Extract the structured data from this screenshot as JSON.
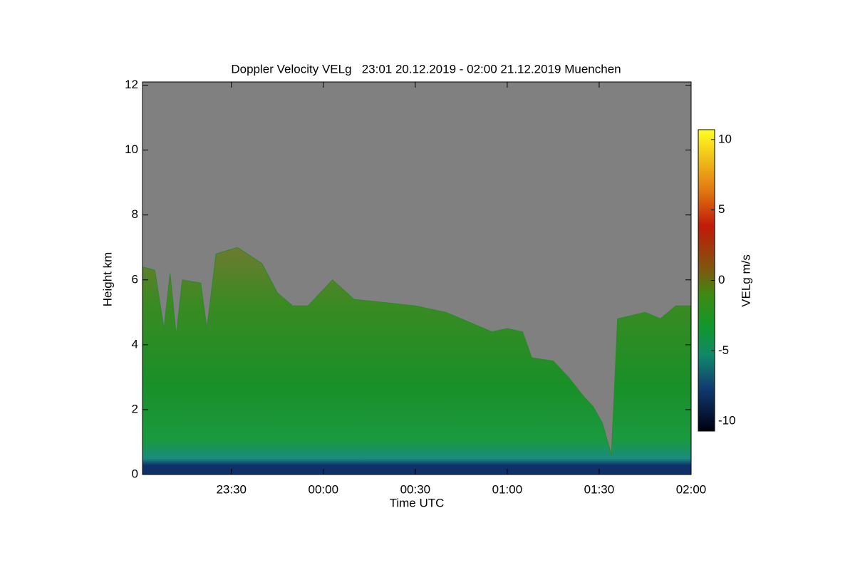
{
  "chart_data": {
    "type": "area",
    "title": "Doppler Velocity VELg   23:01 20.12.2019 - 02:00 21.12.2019 Muenchen",
    "xlabel": "Time UTC",
    "ylabel": "Height km",
    "colorbar_label": "VELg m/s",
    "x": [
      "23:01",
      "23:05",
      "23:08",
      "23:10",
      "23:12",
      "23:14",
      "23:20",
      "23:22",
      "23:25",
      "23:32",
      "23:40",
      "23:45",
      "23:50",
      "23:55",
      "00:03",
      "00:10",
      "00:20",
      "00:30",
      "00:40",
      "00:50",
      "00:55",
      "01:00",
      "01:05",
      "01:08",
      "01:15",
      "01:20",
      "01:25",
      "01:28",
      "01:31",
      "01:34",
      "01:36",
      "01:45",
      "01:50",
      "01:55",
      "02:00"
    ],
    "values": [
      6.4,
      6.3,
      4.5,
      6.2,
      4.3,
      6.0,
      5.9,
      4.5,
      6.8,
      7.0,
      6.5,
      5.6,
      5.2,
      5.2,
      6.0,
      5.4,
      5.3,
      5.2,
      5.0,
      4.6,
      4.4,
      4.5,
      4.4,
      3.6,
      3.5,
      3.0,
      2.4,
      2.1,
      1.6,
      0.6,
      4.8,
      5.0,
      4.8,
      5.2,
      5.2
    ],
    "color": "#2a8a2a",
    "xlim": [
      "23:01",
      "02:00"
    ],
    "xticks": [
      "23:30",
      "00:00",
      "00:30",
      "01:00",
      "01:30",
      "02:00"
    ],
    "ylim": [
      0,
      12.1
    ],
    "yticks": [
      0,
      2,
      4,
      6,
      8,
      10,
      12
    ],
    "clim": [
      -10.7,
      10.7
    ],
    "cticks": [
      -10,
      -5,
      0,
      5,
      10
    ]
  }
}
